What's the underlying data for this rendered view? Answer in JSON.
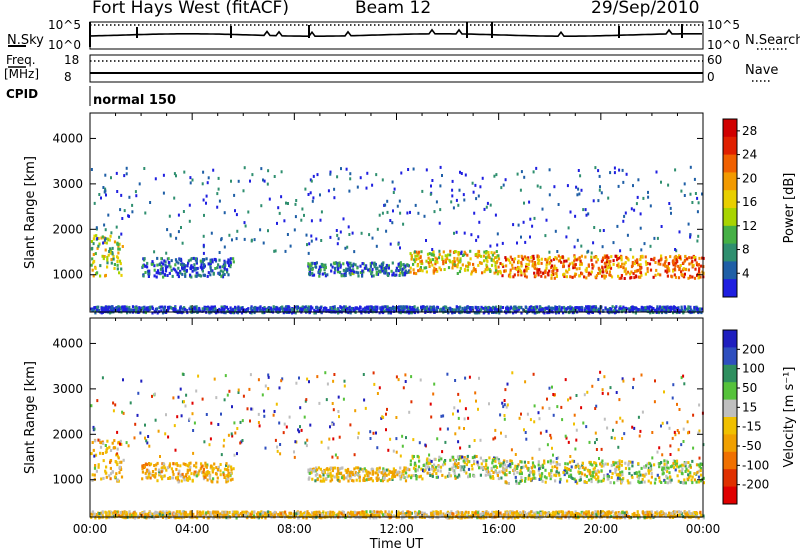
{
  "header": {
    "title": "Fort Hays West (fitACF)",
    "beam": "Beam 12",
    "date": "29/Sep/2010"
  },
  "top_panels": {
    "nsky_label": "N.Sky",
    "nsky_ticks": [
      "10^5",
      "10^0"
    ],
    "nsearch_label": "N.Search",
    "nsearch_ticks": [
      "10^5",
      "10^0"
    ],
    "freq_label": "Freq.",
    "freq_unit": "[MHz]",
    "freq_ticks": [
      "18",
      "8"
    ],
    "nave_label": "Nave",
    "nave_ticks": [
      "60",
      "0"
    ],
    "cpid_label": "CPID",
    "cpid_mode": "normal 150"
  },
  "colors": {
    "power": [
      "#1f1fe0",
      "#1f5fa6",
      "#2f8f6f",
      "#45b045",
      "#a8d400",
      "#e8cf00",
      "#f29a00",
      "#f06000",
      "#e02000",
      "#d00000"
    ],
    "velocity": [
      "#1f1fbf",
      "#2f4fbf",
      "#2f8f5f",
      "#56c23b",
      "#bfbfbf",
      "#f0c000",
      "#f0a000",
      "#f07000",
      "#e03000",
      "#e00000"
    ]
  },
  "chart_data": [
    {
      "type": "heatmap",
      "name": "power",
      "ylabel": "Slant Range [km]",
      "xlabel": "",
      "ylim": [
        180,
        4560
      ],
      "y_ticks": [
        "1000",
        "2000",
        "3000",
        "4000"
      ],
      "x_ticks": [],
      "colorbar_label": "Power [dB]",
      "colorbar_ticks": [
        "4",
        "8",
        "12",
        "16",
        "20",
        "24",
        "28"
      ],
      "colorbar_range": [
        0,
        30
      ],
      "regions": [
        {
          "t": [
            0.0,
            1.3
          ],
          "r": [
            950,
            1900
          ],
          "level": 0.45
        },
        {
          "t": [
            2.0,
            5.6
          ],
          "r": [
            980,
            1400
          ],
          "level": 0.12
        },
        {
          "t": [
            8.5,
            12.5
          ],
          "r": [
            1000,
            1300
          ],
          "level": 0.18
        },
        {
          "t": [
            12.5,
            16.0
          ],
          "r": [
            1050,
            1550
          ],
          "level": 0.55
        },
        {
          "t": [
            16.0,
            24.0
          ],
          "r": [
            950,
            1450
          ],
          "level": 0.72
        },
        {
          "t": [
            0.0,
            24.0
          ],
          "r": [
            190,
            330
          ],
          "level": 0.08
        }
      ]
    },
    {
      "type": "heatmap",
      "name": "velocity",
      "ylabel": "Slant Range [km]",
      "xlabel": "Time UT",
      "ylim": [
        180,
        4560
      ],
      "y_ticks": [
        "1000",
        "2000",
        "3000",
        "4000"
      ],
      "x_ticks": [
        "00:00",
        "04:00",
        "08:00",
        "12:00",
        "16:00",
        "20:00",
        "00:00"
      ],
      "colorbar_label": "Velocity [m s⁻¹]",
      "colorbar_ticks": [
        "200",
        "100",
        "50",
        "15",
        "-15",
        "-50",
        "-100",
        "-200"
      ],
      "regions": [
        {
          "t": [
            0.0,
            1.3
          ],
          "r": [
            950,
            1900
          ],
          "level": -50
        },
        {
          "t": [
            2.0,
            5.6
          ],
          "r": [
            980,
            1400
          ],
          "level": -60
        },
        {
          "t": [
            8.5,
            12.5
          ],
          "r": [
            1000,
            1300
          ],
          "level": -40
        },
        {
          "t": [
            12.5,
            16.0
          ],
          "r": [
            1050,
            1550
          ],
          "level": 0
        },
        {
          "t": [
            16.0,
            24.0
          ],
          "r": [
            950,
            1450
          ],
          "level": -5
        },
        {
          "t": [
            0.0,
            24.0
          ],
          "r": [
            190,
            330
          ],
          "level": -45
        }
      ]
    }
  ]
}
